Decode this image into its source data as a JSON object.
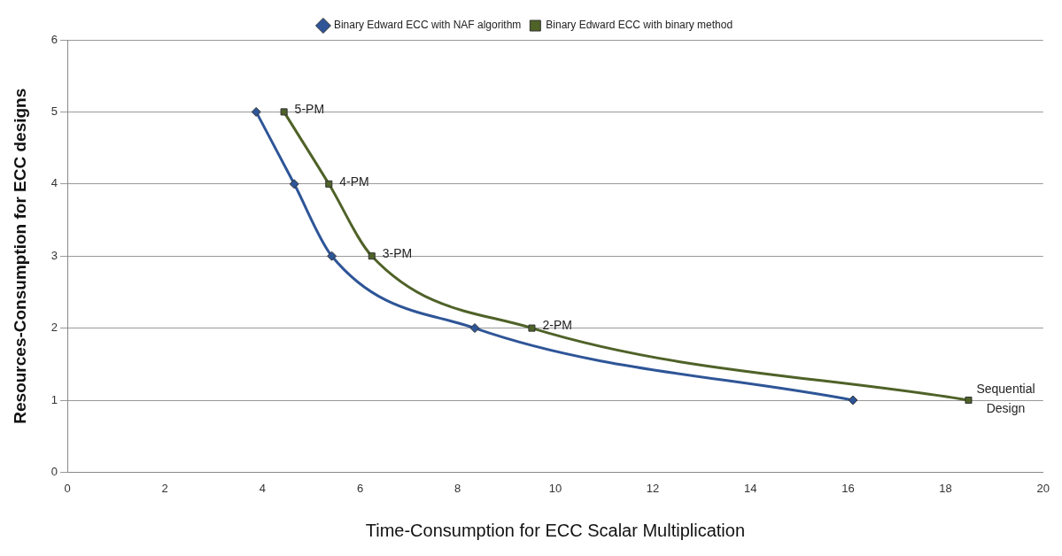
{
  "chart_data": {
    "type": "line",
    "xlabel": "Time-Consumption for ECC Scalar Multiplication",
    "ylabel": "Resources-Consumption for ECC designs",
    "xlim": [
      0,
      20
    ],
    "xticks": [
      0,
      2,
      4,
      6,
      8,
      10,
      12,
      14,
      16,
      18,
      20
    ],
    "ylim": [
      0,
      6
    ],
    "yticks": [
      0,
      1,
      2,
      3,
      4,
      5,
      6
    ],
    "grid": "y",
    "legend": "top",
    "series": [
      {
        "name": "Binary Edward ECC with NAF algorithm",
        "color": "#2e5597",
        "marker": "diamond",
        "x": [
          3.87,
          4.65,
          5.42,
          8.35,
          16.1
        ],
        "values": [
          5,
          4,
          3,
          2,
          1
        ]
      },
      {
        "name": "Binary Edward ECC with binary method",
        "color": "#4f6228",
        "marker": "square",
        "x": [
          4.44,
          5.36,
          6.24,
          9.52,
          18.47
        ],
        "values": [
          5,
          4,
          3,
          2,
          1
        ]
      }
    ],
    "annotations": [
      {
        "text": "5-PM",
        "x": 4.44,
        "y": 5
      },
      {
        "text": "4-PM",
        "x": 5.36,
        "y": 4
      },
      {
        "text": "3-PM",
        "x": 6.24,
        "y": 3
      },
      {
        "text": "2-PM",
        "x": 9.52,
        "y": 2
      },
      {
        "text": "Sequential Design",
        "x": 18.47,
        "y": 1
      }
    ]
  }
}
